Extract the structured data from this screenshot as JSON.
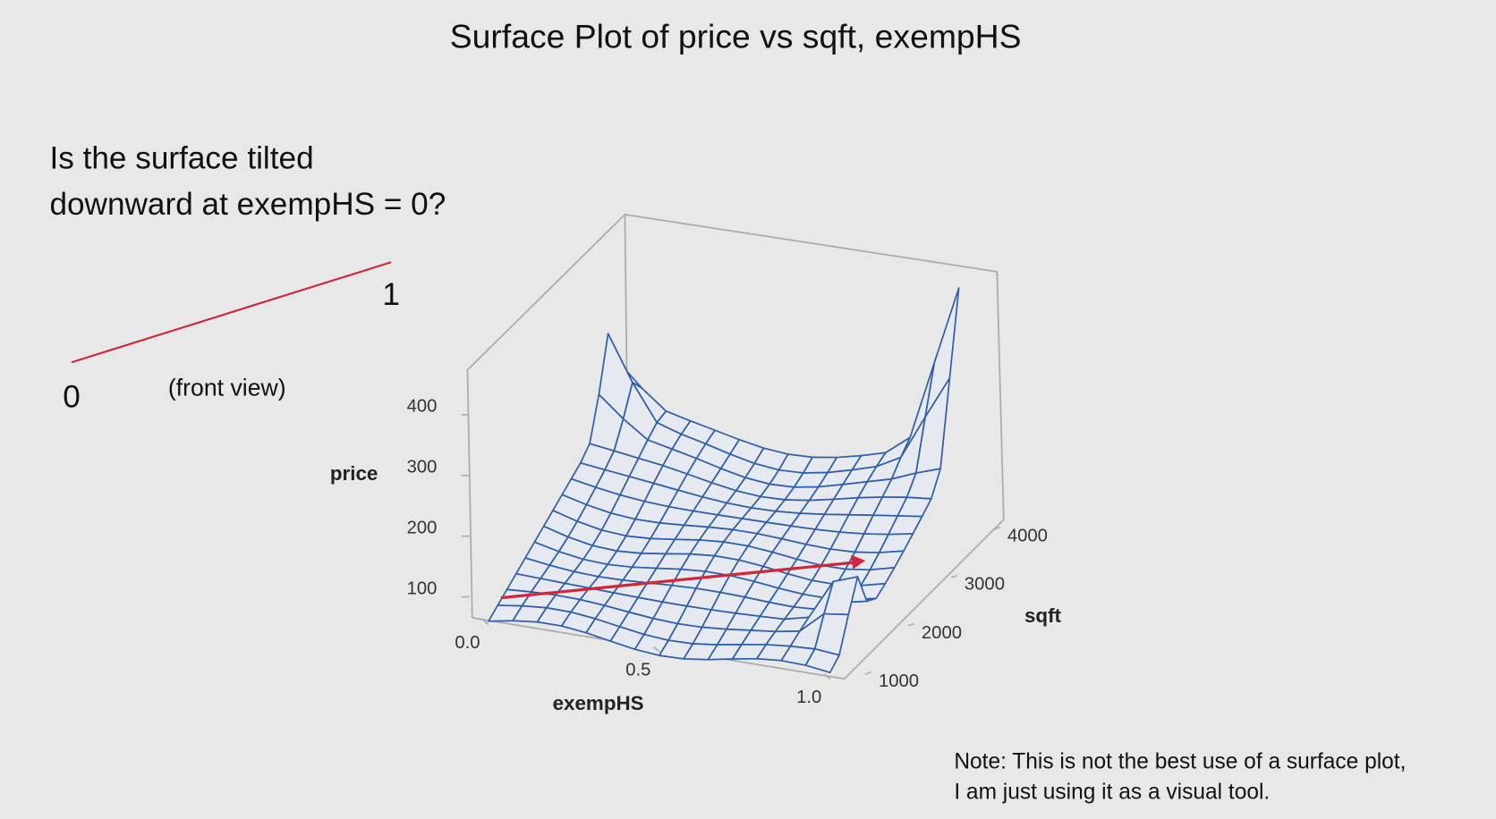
{
  "question": [
    "Is the surface tilted",
    "downward at exempHS = 0?"
  ],
  "front_view": {
    "left_label": "0",
    "right_label": "1",
    "caption": "(front view)"
  },
  "chart_data": {
    "type": "surface",
    "title": "Surface Plot of price vs sqft, exempHS",
    "xlabel": "exempHS",
    "ylabel": "sqft",
    "zlabel": "price",
    "xlim": [
      0,
      1
    ],
    "xticks": [
      {
        "value": 0,
        "label": "0.0"
      },
      0.5,
      {
        "value": 1,
        "label": "1.0"
      }
    ],
    "ylim": [
      1000,
      4000
    ],
    "yticks": [
      1000,
      2000,
      3000,
      4000
    ],
    "zlim": [
      100,
      400
    ],
    "zticks": [
      100,
      200,
      300,
      400
    ],
    "color": "#2f5fa8"
  },
  "note": [
    "Note: This is not the best use of a surface plot,",
    "I am just using it as a visual tool."
  ]
}
